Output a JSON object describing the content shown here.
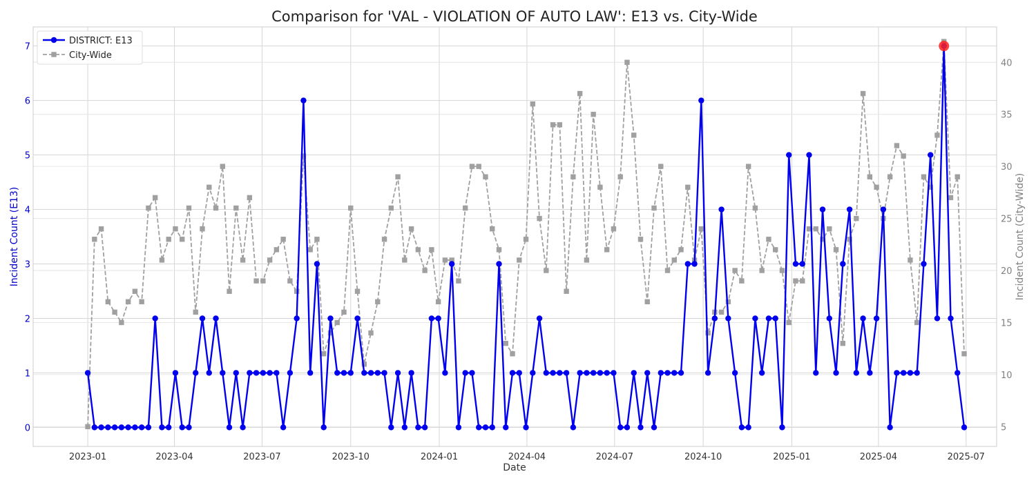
{
  "chart_data": {
    "type": "line",
    "title": "Comparison for 'VAL - VIOLATION OF AUTO LAW': E13 vs. City-Wide",
    "xlabel": "Date",
    "ylabel_left": "Incident Count (E13)",
    "ylabel_right": "Incident Count (City-Wide)",
    "ylim_left": [
      -0.35,
      7.35
    ],
    "ylim_right": [
      3.1,
      43.4
    ],
    "left_ticks": [
      0,
      1,
      2,
      3,
      4,
      5,
      6,
      7
    ],
    "right_ticks": [
      5,
      10,
      15,
      20,
      25,
      30,
      35,
      40
    ],
    "x_ticks": [
      "2023-01",
      "2023-04",
      "2023-07",
      "2023-10",
      "2024-01",
      "2024-04",
      "2024-07",
      "2024-10",
      "2025-01",
      "2025-04",
      "2025-07"
    ],
    "grid": true,
    "legend_position": "top-left",
    "colors": {
      "district": "#0000ee",
      "citywide": "#a0a0a0",
      "highlight": "#ff2020",
      "left_axis": "#0000cc",
      "right_axis": "#808080"
    },
    "series": [
      {
        "name": "DISTRICT: E13",
        "axis": "left",
        "values": [
          1,
          0,
          0,
          0,
          0,
          0,
          0,
          0,
          0,
          0,
          2,
          0,
          0,
          1,
          0,
          0,
          1,
          2,
          1,
          2,
          1,
          0,
          1,
          0,
          1,
          1,
          1,
          1,
          1,
          0,
          1,
          2,
          6,
          1,
          3,
          0,
          2,
          1,
          1,
          1,
          2,
          1,
          1,
          1,
          1,
          0,
          1,
          0,
          1,
          0,
          0,
          2,
          2,
          1,
          3,
          0,
          1,
          1,
          0,
          0,
          0,
          3,
          0,
          1,
          1,
          0,
          1,
          2,
          1,
          1,
          1,
          1,
          0,
          1,
          1,
          1,
          1,
          1,
          1,
          0,
          0,
          1,
          0,
          1,
          0,
          1,
          1,
          1,
          1,
          3,
          3,
          6,
          1,
          2,
          4,
          2,
          1,
          0,
          0,
          2,
          1,
          2,
          2,
          0,
          5,
          3,
          3,
          5,
          1,
          4,
          2,
          1,
          3,
          4,
          1,
          2,
          1,
          2,
          4,
          0,
          1,
          1,
          1,
          1,
          3,
          5,
          2,
          7,
          2,
          1,
          0
        ]
      },
      {
        "name": "City-Wide",
        "axis": "right",
        "values": [
          5,
          23,
          24,
          17,
          16,
          15,
          17,
          18,
          17,
          26,
          27,
          21,
          23,
          24,
          23,
          26,
          16,
          24,
          28,
          26,
          30,
          18,
          26,
          21,
          27,
          19,
          19,
          21,
          22,
          23,
          19,
          18,
          31,
          22,
          23,
          12,
          14,
          15,
          16,
          26,
          18,
          11,
          14,
          17,
          23,
          26,
          29,
          21,
          24,
          22,
          20,
          22,
          17,
          21,
          21,
          19,
          26,
          30,
          30,
          29,
          24,
          22,
          13,
          12,
          21,
          23,
          36,
          25,
          20,
          34,
          34,
          18,
          29,
          37,
          21,
          35,
          28,
          22,
          24,
          29,
          40,
          33,
          23,
          17,
          26,
          30,
          20,
          21,
          22,
          28,
          21,
          24,
          14,
          16,
          16,
          17,
          20,
          19,
          30,
          26,
          20,
          23,
          22,
          20,
          15,
          19,
          19,
          24,
          24,
          23,
          24,
          22,
          13,
          23,
          25,
          37,
          29,
          28,
          25,
          29,
          32,
          31,
          21,
          15,
          29,
          28,
          33,
          42,
          27,
          29,
          12
        ]
      }
    ],
    "highlight": {
      "series": "DISTRICT: E13",
      "date": "2025-06-08",
      "value": 7
    }
  }
}
